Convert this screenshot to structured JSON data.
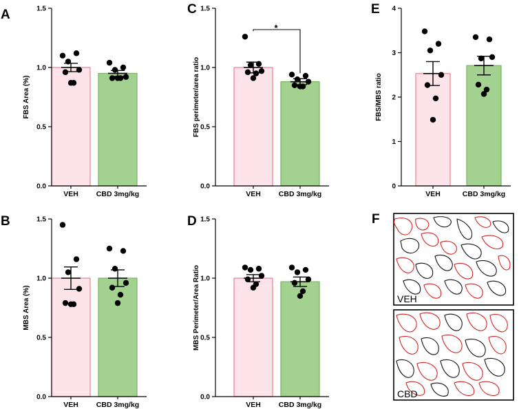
{
  "colors": {
    "veh_fill": "#fce4ea",
    "veh_edge": "#ee8a96",
    "cbd_fill": "#a3d18f",
    "cbd_edge": "#7fb86b",
    "dot": "#000000",
    "outline_red": "#d42424",
    "outline_black": "#111111"
  },
  "chart_data": [
    {
      "id": "A",
      "type": "bar",
      "categories": [
        "VEH",
        "CBD 3mg/kg"
      ],
      "ylabel": "FBS Area (%)",
      "ylim": [
        0,
        1.5
      ],
      "yticks": [
        "0.0",
        "0.5",
        "1.0",
        "1.5"
      ],
      "yticks_values": [
        0,
        0.5,
        1.0,
        1.5
      ],
      "series": [
        {
          "name": "VEH",
          "mean": 1.0,
          "sem": 0.035,
          "points": [
            1.1,
            1.12,
            1.05,
            0.98,
            0.96,
            0.87,
            0.87
          ]
        },
        {
          "name": "CBD 3mg/kg",
          "mean": 0.95,
          "sem": 0.025,
          "points": [
            1.04,
            1.0,
            0.98,
            0.92,
            0.91,
            0.91,
            0.91
          ]
        }
      ]
    },
    {
      "id": "C",
      "type": "bar",
      "categories": [
        "VEH",
        "CBD 3mg/kg"
      ],
      "ylabel": "FBS perimeter/area ratio",
      "ylim": [
        0,
        1.5
      ],
      "yticks": [
        "0.0",
        "0.5",
        "1.0",
        "1.5"
      ],
      "yticks_values": [
        0,
        0.5,
        1.0,
        1.5
      ],
      "significance": "*",
      "series": [
        {
          "name": "VEH",
          "mean": 1.0,
          "sem": 0.045,
          "points": [
            1.26,
            1.03,
            1.02,
            0.97,
            0.96,
            0.95,
            0.91
          ]
        },
        {
          "name": "CBD 3mg/kg",
          "mean": 0.88,
          "sem": 0.025,
          "points": [
            0.94,
            0.93,
            0.9,
            0.88,
            0.85,
            0.84,
            0.84
          ]
        }
      ]
    },
    {
      "id": "E",
      "type": "bar",
      "categories": [
        "VEH",
        "CBD 3mg/kg"
      ],
      "ylabel": "FBS/MBS ratio",
      "ylim": [
        0,
        4
      ],
      "yticks": [
        "0",
        "1",
        "2",
        "3",
        "4"
      ],
      "yticks_values": [
        0,
        1,
        2,
        3,
        4
      ],
      "series": [
        {
          "name": "VEH",
          "mean": 2.53,
          "sem": 0.27,
          "points": [
            3.48,
            3.2,
            3.05,
            2.5,
            2.27,
            1.97,
            1.49
          ]
        },
        {
          "name": "CBD 3mg/kg",
          "mean": 2.71,
          "sem": 0.21,
          "points": [
            3.35,
            3.3,
            2.87,
            2.9,
            2.28,
            2.17,
            2.07
          ]
        }
      ]
    },
    {
      "id": "B",
      "type": "bar",
      "categories": [
        "VEH",
        "CBD 3mg/kg"
      ],
      "ylabel": "MBS Area (%)",
      "ylim": [
        0,
        1.5
      ],
      "yticks": [
        "0.0",
        "0.5",
        "1.0",
        "1.5"
      ],
      "yticks_values": [
        0,
        0.5,
        1.0,
        1.5
      ],
      "series": [
        {
          "name": "VEH",
          "mean": 1.0,
          "sem": 0.095,
          "points": [
            1.45,
            1.16,
            1.05,
            0.91,
            0.79,
            0.78,
            0.78
          ]
        },
        {
          "name": "CBD 3mg/kg",
          "mean": 1.0,
          "sem": 0.07,
          "points": [
            1.25,
            1.23,
            1.08,
            0.96,
            0.92,
            0.86,
            0.79
          ]
        }
      ]
    },
    {
      "id": "D",
      "type": "bar",
      "categories": [
        "VEH",
        "CBD 3mg/kg"
      ],
      "ylabel": "MBS Perimeter/Area Ratio",
      "ylim": [
        0,
        1.5
      ],
      "yticks": [
        "0.0",
        "0.5",
        "1.0",
        "1.5"
      ],
      "yticks_values": [
        0,
        0.5,
        1.0,
        1.5
      ],
      "series": [
        {
          "name": "VEH",
          "mean": 1.0,
          "sem": 0.03,
          "points": [
            1.09,
            1.08,
            1.07,
            1.02,
            0.99,
            0.95,
            0.92
          ]
        },
        {
          "name": "CBD 3mg/kg",
          "mean": 0.97,
          "sem": 0.04,
          "points": [
            1.09,
            1.07,
            1.05,
            0.99,
            0.96,
            0.89,
            0.85
          ]
        }
      ]
    }
  ],
  "panel_F": {
    "letter": "F",
    "images": [
      {
        "label": "VEH"
      },
      {
        "label": "CBD"
      }
    ]
  }
}
